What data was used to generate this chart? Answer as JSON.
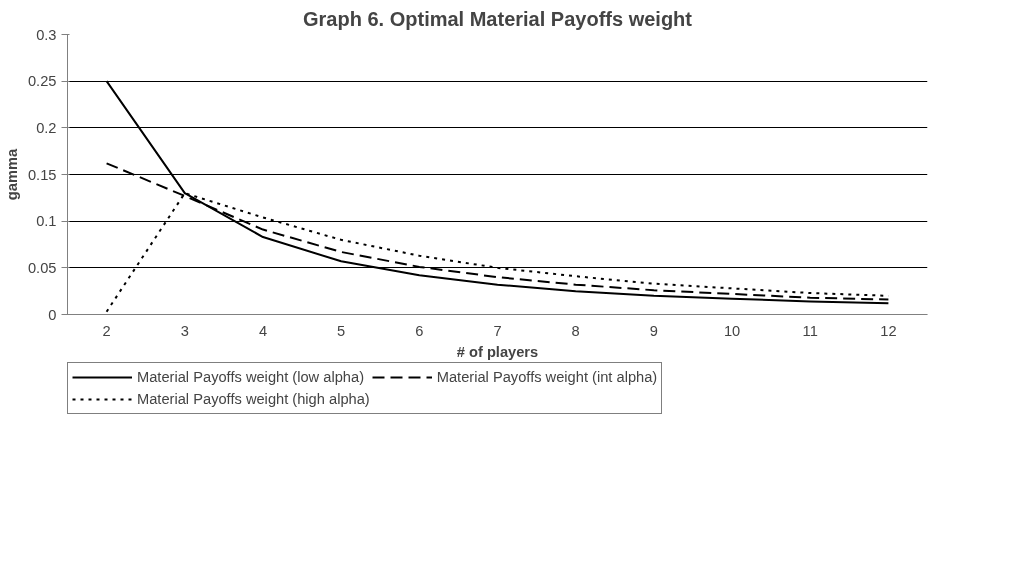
{
  "chart_data": {
    "type": "line",
    "title": "Graph 6. Optimal Material Payoffs weight",
    "xlabel": "# of players",
    "ylabel": "gamma",
    "categories": [
      "2",
      "3",
      "4",
      "5",
      "6",
      "7",
      "8",
      "9",
      "10",
      "11",
      "12"
    ],
    "ylim": [
      0,
      0.3
    ],
    "yticks": [
      0,
      0.05,
      0.1,
      0.15,
      0.2,
      0.25,
      0.3
    ],
    "grid": "y",
    "legend": "bottom",
    "marker": "none",
    "series": [
      {
        "name": "Material Payoffs weight (low alpha)",
        "color": "#000000",
        "line_style": "solid",
        "values": [
          0.25,
          0.13,
          0.083,
          0.057,
          0.042,
          0.032,
          0.025,
          0.02,
          0.017,
          0.014,
          0.012
        ]
      },
      {
        "name": "Material Payoffs weight (int alpha)",
        "color": "#000000",
        "line_style": "dashed",
        "values": [
          0.162,
          0.127,
          0.091,
          0.067,
          0.051,
          0.04,
          0.032,
          0.026,
          0.022,
          0.018,
          0.016
        ]
      },
      {
        "name": "Material Payoffs weight (high alpha)",
        "color": "#000000",
        "line_style": "dotted",
        "values": [
          0.003,
          0.13,
          0.104,
          0.08,
          0.063,
          0.05,
          0.041,
          0.033,
          0.028,
          0.023,
          0.02
        ]
      }
    ]
  }
}
